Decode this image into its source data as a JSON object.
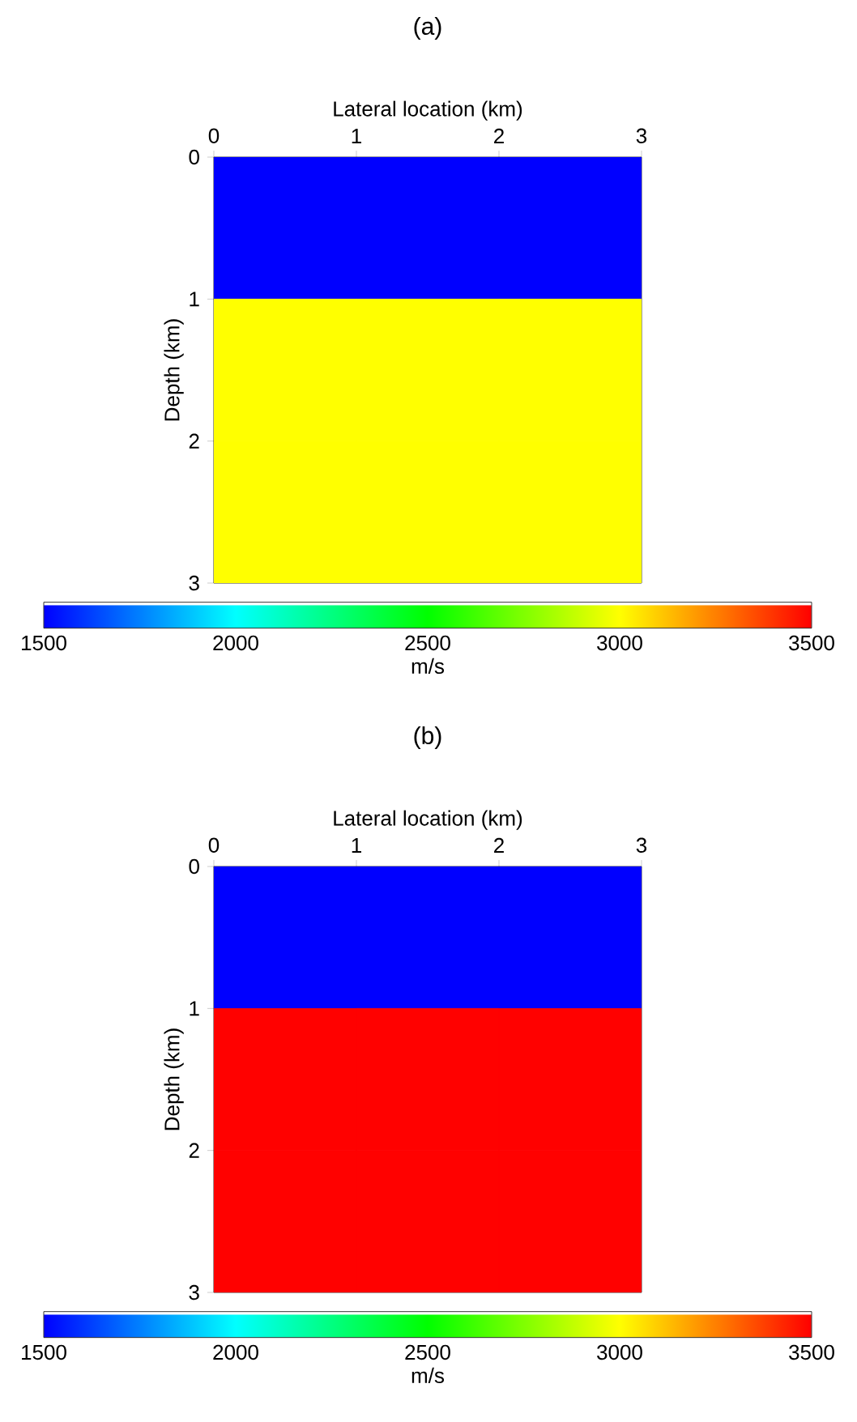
{
  "chart_data": [
    {
      "type": "heatmap",
      "title": "(a)",
      "xlabel": "Lateral location (km)",
      "ylabel": "Depth (km)",
      "clabel": "m/s",
      "xlim": [
        0,
        3
      ],
      "xticks": [
        0,
        1,
        2,
        3
      ],
      "ylim": [
        3,
        0
      ],
      "yticks": [
        0,
        1,
        2,
        3
      ],
      "cells": [
        [
          1500,
          1500,
          1500
        ],
        [
          3000,
          3000,
          3000
        ],
        [
          3000,
          3000,
          3000
        ]
      ],
      "clim": [
        1500,
        3500
      ],
      "cticks": [
        1500,
        2000,
        2500,
        3000,
        3500
      ]
    },
    {
      "type": "heatmap",
      "title": "(b)",
      "xlabel": "Lateral location (km)",
      "ylabel": "Depth (km)",
      "clabel": "m/s",
      "xlim": [
        0,
        3
      ],
      "xticks": [
        0,
        1,
        2,
        3
      ],
      "ylim": [
        3,
        0
      ],
      "yticks": [
        0,
        1,
        2,
        3
      ],
      "cells": [
        [
          1500,
          1500,
          1500
        ],
        [
          3500,
          3500,
          3500
        ],
        [
          3500,
          3500,
          3500
        ]
      ],
      "clim": [
        1500,
        3500
      ],
      "cticks": [
        1500,
        2000,
        2500,
        3000,
        3500
      ]
    }
  ]
}
